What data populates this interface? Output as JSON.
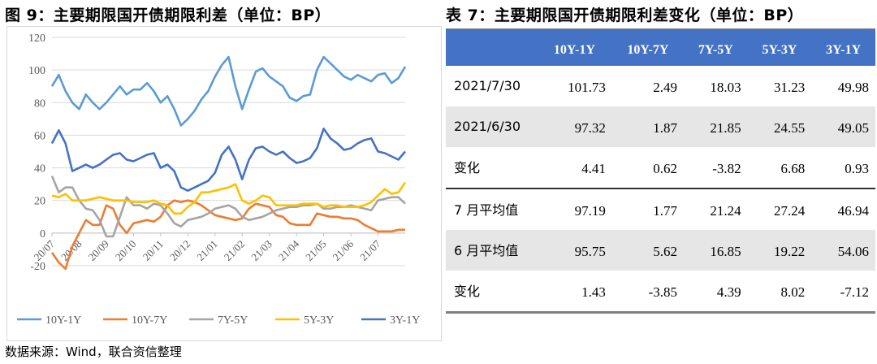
{
  "chart_title": "图 9：主要期限国开债期限利差（单位：BP）",
  "table_title": "表 7：主要期限国开债期限利差变化（单位：BP）",
  "source": "数据来源：Wind，联合资信整理",
  "chart_data": {
    "type": "line",
    "title": "",
    "xlabel": "",
    "ylabel": "",
    "ylim": [
      -20,
      120
    ],
    "yticks": [
      "-20",
      "0",
      "20",
      "40",
      "60",
      "80",
      "100",
      "120"
    ],
    "xticks": [
      "20/07",
      "20/08",
      "20/09",
      "20/10",
      "20/11",
      "20/12",
      "21/01",
      "21/02",
      "21/03",
      "21/04",
      "21/05",
      "21/06",
      "21/07"
    ],
    "grid": true,
    "legend": "bottom",
    "x": [
      "2020-07-01",
      "2020-07-08",
      "2020-07-15",
      "2020-07-23",
      "2020-08-01",
      "2020-08-08",
      "2020-08-15",
      "2020-08-23",
      "2020-09-01",
      "2020-09-08",
      "2020-09-15",
      "2020-09-23",
      "2020-10-01",
      "2020-10-08",
      "2020-10-15",
      "2020-10-23",
      "2020-11-01",
      "2020-11-08",
      "2020-11-15",
      "2020-11-23",
      "2020-12-01",
      "2020-12-08",
      "2020-12-15",
      "2020-12-23",
      "2021-01-01",
      "2021-01-08",
      "2021-01-15",
      "2021-01-23",
      "2021-02-01",
      "2021-02-08",
      "2021-02-15",
      "2021-02-23",
      "2021-03-01",
      "2021-03-08",
      "2021-03-15",
      "2021-03-23",
      "2021-04-01",
      "2021-04-08",
      "2021-04-15",
      "2021-04-23",
      "2021-05-01",
      "2021-05-08",
      "2021-05-15",
      "2021-05-23",
      "2021-06-01",
      "2021-06-08",
      "2021-06-15",
      "2021-06-23",
      "2021-07-01",
      "2021-07-08",
      "2021-07-15",
      "2021-07-23",
      "2021-07-30"
    ],
    "series": [
      {
        "name": "10Y-1Y",
        "color": "#5B9BD5",
        "values": [
          90,
          97,
          87,
          80,
          76,
          85,
          80,
          76,
          80,
          85,
          90,
          85,
          88,
          88,
          92,
          87,
          80,
          84,
          76,
          66,
          70,
          75,
          82,
          87,
          96,
          103,
          108,
          90,
          76,
          88,
          99,
          101,
          96,
          93,
          90,
          83,
          81,
          84,
          85,
          100,
          108,
          104,
          100,
          96,
          94,
          97,
          95,
          93,
          97,
          98,
          92,
          95,
          102
        ]
      },
      {
        "name": "10Y-7Y",
        "color": "#ED7D31",
        "values": [
          -12,
          -18,
          -22,
          -8,
          0,
          8,
          5,
          5,
          17,
          15,
          5,
          0,
          6,
          7,
          8,
          7,
          10,
          17,
          20,
          19,
          20,
          19,
          17,
          14,
          11,
          10,
          9,
          8,
          9,
          15,
          18,
          17,
          16,
          11,
          10,
          6,
          5,
          5,
          5,
          12,
          11,
          10,
          10,
          9,
          9,
          8,
          5,
          3,
          1,
          1,
          1,
          2,
          2
        ]
      },
      {
        "name": "7Y-5Y",
        "color": "#A5A5A5",
        "values": [
          35,
          25,
          28,
          28,
          20,
          15,
          14,
          8,
          -2,
          -2,
          10,
          22,
          17,
          17,
          15,
          18,
          17,
          12,
          6,
          4,
          8,
          9,
          10,
          12,
          15,
          16,
          17,
          15,
          10,
          8,
          9,
          10,
          12,
          14,
          15,
          16,
          16,
          17,
          17,
          18,
          15,
          15,
          16,
          16,
          17,
          16,
          15,
          14,
          20,
          21,
          22,
          22,
          18
        ]
      },
      {
        "name": "5Y-3Y",
        "color": "#FFC000",
        "values": [
          23,
          22,
          24,
          20,
          20,
          20,
          21,
          22,
          21,
          20,
          20,
          20,
          19,
          19,
          19,
          20,
          18,
          17,
          12,
          12,
          16,
          19,
          25,
          25,
          26,
          27,
          28,
          30,
          20,
          18,
          20,
          23,
          22,
          17,
          17,
          17,
          17,
          18,
          18,
          18,
          16,
          17,
          17,
          16,
          16,
          16,
          17,
          19,
          23,
          27,
          24,
          25,
          31
        ]
      },
      {
        "name": "3Y-1Y",
        "color": "#4472C4",
        "values": [
          55,
          63,
          55,
          38,
          40,
          42,
          40,
          42,
          45,
          48,
          49,
          45,
          44,
          46,
          48,
          49,
          40,
          42,
          38,
          28,
          26,
          28,
          30,
          32,
          37,
          48,
          53,
          45,
          33,
          45,
          52,
          53,
          50,
          48,
          50,
          46,
          43,
          44,
          46,
          52,
          64,
          58,
          55,
          51,
          52,
          55,
          57,
          58,
          50,
          49,
          47,
          45,
          50
        ]
      }
    ]
  },
  "table": {
    "headers": [
      "",
      "10Y-1Y",
      "10Y-7Y",
      "7Y-5Y",
      "5Y-3Y",
      "3Y-1Y"
    ],
    "rows": [
      {
        "label": "2021/7/30",
        "cells": [
          "101.73",
          "2.49",
          "18.03",
          "31.23",
          "49.98"
        ]
      },
      {
        "label": "2021/6/30",
        "cells": [
          "97.32",
          "1.87",
          "21.85",
          "24.55",
          "49.05"
        ]
      },
      {
        "label": "变化",
        "cells": [
          "4.41",
          "0.62",
          "-3.82",
          "6.68",
          "0.93"
        ]
      },
      {
        "label": "7 月平均值",
        "cells": [
          "97.19",
          "1.77",
          "21.24",
          "27.24",
          "46.94"
        ]
      },
      {
        "label": "6 月平均值",
        "cells": [
          "95.75",
          "5.62",
          "16.85",
          "19.22",
          "54.06"
        ]
      },
      {
        "label": "变化",
        "cells": [
          "1.43",
          "-3.85",
          "4.39",
          "8.02",
          "-7.12"
        ]
      }
    ],
    "header_color": "#4472C4",
    "shade_color": "#E7E6E6"
  }
}
